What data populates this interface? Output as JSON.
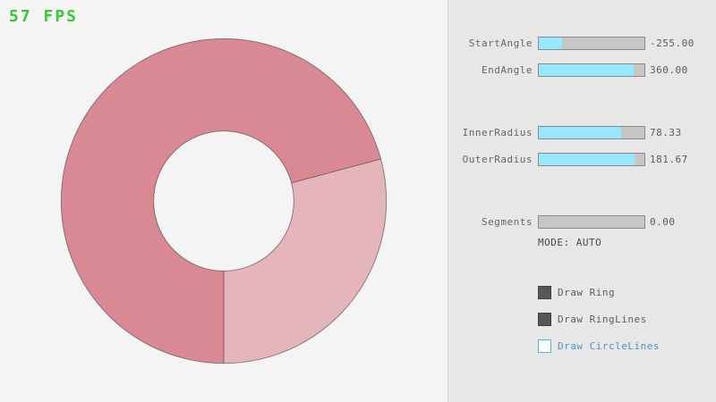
{
  "fps": {
    "text": "57 FPS"
  },
  "colors": {
    "background": "#f4f4f4",
    "panel_background": "#e7e7e7",
    "fps_green": "#36c936",
    "slider_fill_cyan": "#97e8ff",
    "slider_track_gray": "#c6c6c6",
    "focused_blue": "#4896c8"
  },
  "ring": {
    "start_angle": -255.0,
    "end_angle": 360.0,
    "inner_radius": 78.33,
    "outer_radius": 181.67,
    "segments": 0,
    "colors": {
      "double_pass": "#d98994",
      "single_pass": "#e5b5bc",
      "outline": "rgba(0,0,0,0.4)"
    }
  },
  "panel": {
    "sliders": [
      {
        "label": "StartAngle",
        "value": "-255.00",
        "fill_pct": 21.7
      },
      {
        "label": "EndAngle",
        "value": "360.00",
        "fill_pct": 90.0
      },
      {
        "label": "InnerRadius",
        "value": "78.33",
        "fill_pct": 78.3
      },
      {
        "label": "OuterRadius",
        "value": "181.67",
        "fill_pct": 90.8
      },
      {
        "label": "Segments",
        "value": "0.00",
        "fill_pct": 0
      }
    ],
    "mode_text": "MODE: AUTO",
    "checkboxes": [
      {
        "label": "Draw Ring",
        "checked": true,
        "focused": false
      },
      {
        "label": "Draw RingLines",
        "checked": true,
        "focused": false
      },
      {
        "label": "Draw CircleLines",
        "checked": false,
        "focused": true
      }
    ]
  }
}
